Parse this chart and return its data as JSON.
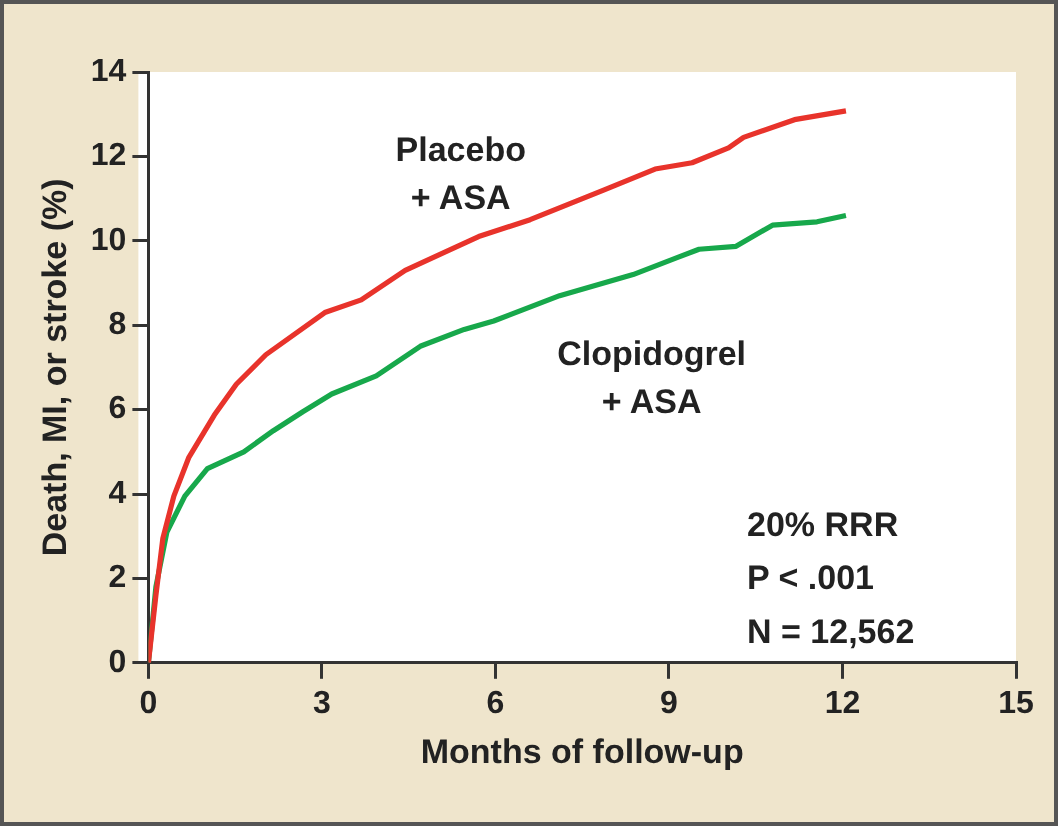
{
  "chart_data": {
    "type": "line",
    "xlabel": "Months of follow-up",
    "ylabel": "Death, MI, or stroke (%)",
    "xlim": [
      0,
      15
    ],
    "xticks": [
      0,
      3,
      6,
      9,
      12,
      15
    ],
    "ylim": [
      0,
      14
    ],
    "yticks": [
      0,
      2,
      4,
      6,
      8,
      10,
      12,
      14
    ],
    "grid": false,
    "legend": false,
    "marker": "none",
    "line_style": "solid",
    "series": [
      {
        "name": "Placebo + ASA",
        "color": "#e8332b",
        "x": [
          0,
          0.13,
          0.25,
          0.44,
          0.7,
          1.14,
          1.52,
          2.03,
          3.05,
          3.68,
          4.44,
          5.71,
          6.6,
          7.87,
          8.76,
          9.4,
          10.03,
          10.29,
          11.17,
          12.06
        ],
        "values": [
          0,
          1.6,
          2.95,
          3.95,
          4.87,
          5.87,
          6.6,
          7.3,
          8.3,
          8.6,
          9.3,
          10.1,
          10.5,
          11.2,
          11.7,
          11.85,
          12.2,
          12.45,
          12.87,
          13.08
        ]
      },
      {
        "name": "Clopidogrel + ASA",
        "color": "#17a84b",
        "x": [
          0,
          0.13,
          0.32,
          0.63,
          1.02,
          1.65,
          2.16,
          2.67,
          3.17,
          3.94,
          4.7,
          5.46,
          5.97,
          7.11,
          8.38,
          9.14,
          9.52,
          10.16,
          10.79,
          11.56,
          12.06
        ],
        "values": [
          0,
          1.8,
          3.1,
          3.95,
          4.6,
          5.0,
          5.5,
          5.95,
          6.37,
          6.8,
          7.5,
          7.9,
          8.1,
          8.7,
          9.2,
          9.6,
          9.8,
          9.87,
          10.37,
          10.45,
          10.6
        ]
      }
    ],
    "annotations": [
      "20% RRR",
      "P < .001",
      "N = 12,562"
    ]
  }
}
